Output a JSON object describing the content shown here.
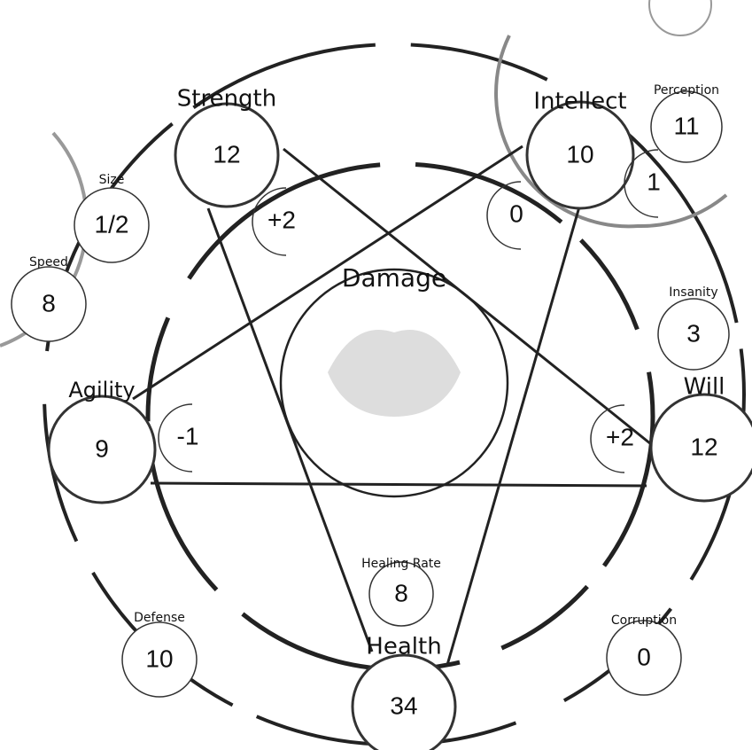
{
  "damage": {
    "label": "Damage"
  },
  "stats": [
    {
      "label": "Strength",
      "value": "12"
    },
    {
      "label": "Intellect",
      "value": "10"
    },
    {
      "label": "Perception",
      "value": "11"
    },
    {
      "label": "Size",
      "value": "1/2"
    },
    {
      "label": "Speed",
      "value": "8"
    },
    {
      "label": "Insanity",
      "value": "3"
    },
    {
      "label": "Will",
      "value": "12"
    },
    {
      "label": "Agility",
      "value": "9"
    },
    {
      "label": "Healing Rate",
      "value": "8"
    },
    {
      "label": "Health",
      "value": "34"
    },
    {
      "label": "Defense",
      "value": "10"
    },
    {
      "label": "Corruption",
      "value": "0"
    }
  ],
  "modifiers": [
    "+2",
    "0",
    "1",
    "+2",
    "-1"
  ]
}
